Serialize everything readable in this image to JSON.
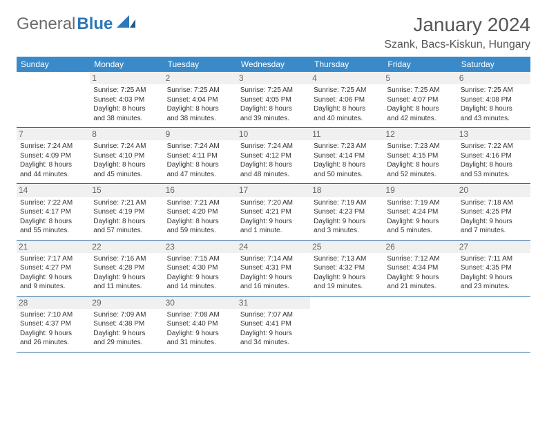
{
  "logo": {
    "text_gray": "General",
    "text_blue": "Blue"
  },
  "title": "January 2024",
  "location": "Szank, Bacs-Kiskun, Hungary",
  "colors": {
    "header_bg": "#3a8ac9",
    "row_border": "#2e6da4",
    "daynum_bg": "#f0f0f0",
    "text": "#333333",
    "title_text": "#555555"
  },
  "day_headers": [
    "Sunday",
    "Monday",
    "Tuesday",
    "Wednesday",
    "Thursday",
    "Friday",
    "Saturday"
  ],
  "weeks": [
    [
      {
        "day": "",
        "lines": []
      },
      {
        "day": "1",
        "lines": [
          "Sunrise: 7:25 AM",
          "Sunset: 4:03 PM",
          "Daylight: 8 hours",
          "and 38 minutes."
        ]
      },
      {
        "day": "2",
        "lines": [
          "Sunrise: 7:25 AM",
          "Sunset: 4:04 PM",
          "Daylight: 8 hours",
          "and 38 minutes."
        ]
      },
      {
        "day": "3",
        "lines": [
          "Sunrise: 7:25 AM",
          "Sunset: 4:05 PM",
          "Daylight: 8 hours",
          "and 39 minutes."
        ]
      },
      {
        "day": "4",
        "lines": [
          "Sunrise: 7:25 AM",
          "Sunset: 4:06 PM",
          "Daylight: 8 hours",
          "and 40 minutes."
        ]
      },
      {
        "day": "5",
        "lines": [
          "Sunrise: 7:25 AM",
          "Sunset: 4:07 PM",
          "Daylight: 8 hours",
          "and 42 minutes."
        ]
      },
      {
        "day": "6",
        "lines": [
          "Sunrise: 7:25 AM",
          "Sunset: 4:08 PM",
          "Daylight: 8 hours",
          "and 43 minutes."
        ]
      }
    ],
    [
      {
        "day": "7",
        "lines": [
          "Sunrise: 7:24 AM",
          "Sunset: 4:09 PM",
          "Daylight: 8 hours",
          "and 44 minutes."
        ]
      },
      {
        "day": "8",
        "lines": [
          "Sunrise: 7:24 AM",
          "Sunset: 4:10 PM",
          "Daylight: 8 hours",
          "and 45 minutes."
        ]
      },
      {
        "day": "9",
        "lines": [
          "Sunrise: 7:24 AM",
          "Sunset: 4:11 PM",
          "Daylight: 8 hours",
          "and 47 minutes."
        ]
      },
      {
        "day": "10",
        "lines": [
          "Sunrise: 7:24 AM",
          "Sunset: 4:12 PM",
          "Daylight: 8 hours",
          "and 48 minutes."
        ]
      },
      {
        "day": "11",
        "lines": [
          "Sunrise: 7:23 AM",
          "Sunset: 4:14 PM",
          "Daylight: 8 hours",
          "and 50 minutes."
        ]
      },
      {
        "day": "12",
        "lines": [
          "Sunrise: 7:23 AM",
          "Sunset: 4:15 PM",
          "Daylight: 8 hours",
          "and 52 minutes."
        ]
      },
      {
        "day": "13",
        "lines": [
          "Sunrise: 7:22 AM",
          "Sunset: 4:16 PM",
          "Daylight: 8 hours",
          "and 53 minutes."
        ]
      }
    ],
    [
      {
        "day": "14",
        "lines": [
          "Sunrise: 7:22 AM",
          "Sunset: 4:17 PM",
          "Daylight: 8 hours",
          "and 55 minutes."
        ]
      },
      {
        "day": "15",
        "lines": [
          "Sunrise: 7:21 AM",
          "Sunset: 4:19 PM",
          "Daylight: 8 hours",
          "and 57 minutes."
        ]
      },
      {
        "day": "16",
        "lines": [
          "Sunrise: 7:21 AM",
          "Sunset: 4:20 PM",
          "Daylight: 8 hours",
          "and 59 minutes."
        ]
      },
      {
        "day": "17",
        "lines": [
          "Sunrise: 7:20 AM",
          "Sunset: 4:21 PM",
          "Daylight: 9 hours",
          "and 1 minute."
        ]
      },
      {
        "day": "18",
        "lines": [
          "Sunrise: 7:19 AM",
          "Sunset: 4:23 PM",
          "Daylight: 9 hours",
          "and 3 minutes."
        ]
      },
      {
        "day": "19",
        "lines": [
          "Sunrise: 7:19 AM",
          "Sunset: 4:24 PM",
          "Daylight: 9 hours",
          "and 5 minutes."
        ]
      },
      {
        "day": "20",
        "lines": [
          "Sunrise: 7:18 AM",
          "Sunset: 4:25 PM",
          "Daylight: 9 hours",
          "and 7 minutes."
        ]
      }
    ],
    [
      {
        "day": "21",
        "lines": [
          "Sunrise: 7:17 AM",
          "Sunset: 4:27 PM",
          "Daylight: 9 hours",
          "and 9 minutes."
        ]
      },
      {
        "day": "22",
        "lines": [
          "Sunrise: 7:16 AM",
          "Sunset: 4:28 PM",
          "Daylight: 9 hours",
          "and 11 minutes."
        ]
      },
      {
        "day": "23",
        "lines": [
          "Sunrise: 7:15 AM",
          "Sunset: 4:30 PM",
          "Daylight: 9 hours",
          "and 14 minutes."
        ]
      },
      {
        "day": "24",
        "lines": [
          "Sunrise: 7:14 AM",
          "Sunset: 4:31 PM",
          "Daylight: 9 hours",
          "and 16 minutes."
        ]
      },
      {
        "day": "25",
        "lines": [
          "Sunrise: 7:13 AM",
          "Sunset: 4:32 PM",
          "Daylight: 9 hours",
          "and 19 minutes."
        ]
      },
      {
        "day": "26",
        "lines": [
          "Sunrise: 7:12 AM",
          "Sunset: 4:34 PM",
          "Daylight: 9 hours",
          "and 21 minutes."
        ]
      },
      {
        "day": "27",
        "lines": [
          "Sunrise: 7:11 AM",
          "Sunset: 4:35 PM",
          "Daylight: 9 hours",
          "and 23 minutes."
        ]
      }
    ],
    [
      {
        "day": "28",
        "lines": [
          "Sunrise: 7:10 AM",
          "Sunset: 4:37 PM",
          "Daylight: 9 hours",
          "and 26 minutes."
        ]
      },
      {
        "day": "29",
        "lines": [
          "Sunrise: 7:09 AM",
          "Sunset: 4:38 PM",
          "Daylight: 9 hours",
          "and 29 minutes."
        ]
      },
      {
        "day": "30",
        "lines": [
          "Sunrise: 7:08 AM",
          "Sunset: 4:40 PM",
          "Daylight: 9 hours",
          "and 31 minutes."
        ]
      },
      {
        "day": "31",
        "lines": [
          "Sunrise: 7:07 AM",
          "Sunset: 4:41 PM",
          "Daylight: 9 hours",
          "and 34 minutes."
        ]
      },
      {
        "day": "",
        "lines": []
      },
      {
        "day": "",
        "lines": []
      },
      {
        "day": "",
        "lines": []
      }
    ]
  ]
}
